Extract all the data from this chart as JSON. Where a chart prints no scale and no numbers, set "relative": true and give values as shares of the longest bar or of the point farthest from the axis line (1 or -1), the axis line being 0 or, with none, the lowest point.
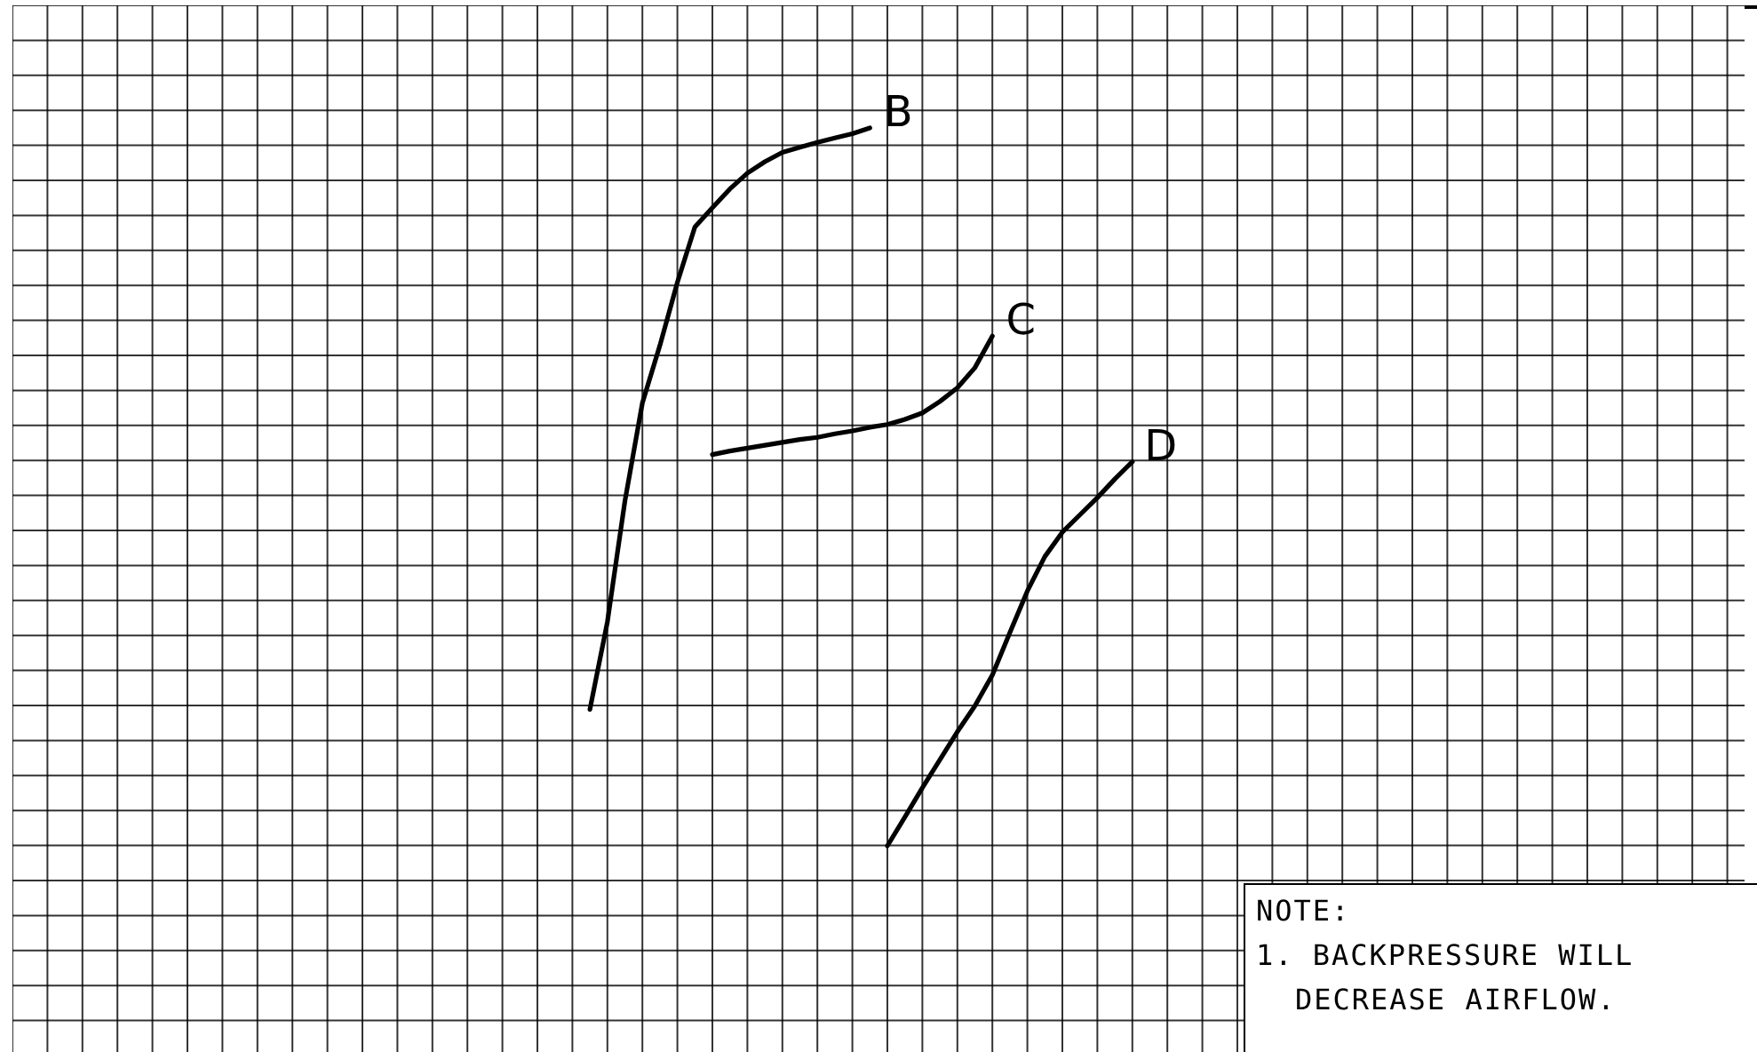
{
  "chart_data": {
    "type": "line",
    "relative": true,
    "grid": true,
    "marker": "none",
    "line_style": "solid",
    "categories": [
      null,
      null,
      null,
      null,
      null,
      null,
      null,
      null,
      null,
      null,
      null,
      null,
      null,
      null,
      null,
      null,
      null,
      null,
      null,
      null,
      null,
      null,
      null,
      null,
      null,
      null,
      null,
      null,
      null,
      null,
      null,
      null,
      null,
      null,
      null,
      null,
      null,
      null,
      null,
      null,
      null,
      null,
      null,
      null,
      null,
      null,
      null,
      null,
      null,
      null,
      null,
      null,
      null,
      null,
      null,
      null,
      null,
      null,
      null,
      null,
      null,
      null,
      null,
      null,
      null,
      null,
      null,
      null,
      null,
      null,
      null,
      null,
      null,
      null,
      null,
      null,
      null,
      null,
      null,
      null,
      null,
      null,
      null,
      null,
      null,
      null,
      null,
      null,
      null,
      null,
      null,
      null,
      null,
      null,
      null,
      null,
      null,
      null,
      null,
      null
    ],
    "annotations": [
      "NOTE:",
      "1. BACKPRESSURE WILL DECREASE AIRFLOW."
    ],
    "series": [
      {
        "name": "B",
        "color": "#000000",
        "values": [
          null,
          null,
          null,
          null,
          null,
          null,
          null,
          null,
          null,
          null,
          null,
          null,
          null,
          null,
          null,
          null,
          null,
          null,
          null,
          null,
          null,
          null,
          null,
          null,
          null,
          null,
          null,
          null,
          null,
          null,
          null,
          null,
          null,
          0.19,
          0.312,
          0.48,
          0.617,
          0.697,
          0.785,
          0.862,
          0.889,
          0.915,
          0.937,
          0.953,
          0.966,
          0.973,
          0.98,
          0.986,
          0.992,
          1,
          null,
          null,
          null,
          null,
          null,
          null,
          null,
          null,
          null,
          null,
          null,
          null,
          null,
          null,
          null,
          null,
          null,
          null,
          null,
          null,
          null,
          null,
          null,
          null,
          null,
          null,
          null,
          null,
          null,
          null,
          null,
          null,
          null,
          null,
          null,
          null,
          null,
          null,
          null,
          null,
          null,
          null,
          null,
          null,
          null,
          null,
          null,
          null,
          null,
          null
        ]
      },
      {
        "name": "C",
        "color": "#000000",
        "values": [
          null,
          null,
          null,
          null,
          null,
          null,
          null,
          null,
          null,
          null,
          null,
          null,
          null,
          null,
          null,
          null,
          null,
          null,
          null,
          null,
          null,
          null,
          null,
          null,
          null,
          null,
          null,
          null,
          null,
          null,
          null,
          null,
          null,
          null,
          null,
          null,
          null,
          null,
          null,
          null,
          0.545,
          0.55,
          0.554,
          0.558,
          0.562,
          0.566,
          0.569,
          0.574,
          0.578,
          0.583,
          0.587,
          0.594,
          0.603,
          0.619,
          0.638,
          0.666,
          0.71,
          null,
          null,
          null,
          null,
          null,
          null,
          null,
          null,
          null,
          null,
          null,
          null,
          null,
          null,
          null,
          null,
          null,
          null,
          null,
          null,
          null,
          null,
          null,
          null,
          null,
          null,
          null,
          null,
          null,
          null,
          null,
          null,
          null,
          null,
          null,
          null,
          null,
          null,
          null,
          null,
          null,
          null,
          null
        ]
      },
      {
        "name": "D",
        "color": "#000000",
        "values": [
          null,
          null,
          null,
          null,
          null,
          null,
          null,
          null,
          null,
          null,
          null,
          null,
          null,
          null,
          null,
          null,
          null,
          null,
          null,
          null,
          null,
          null,
          null,
          null,
          null,
          null,
          null,
          null,
          null,
          null,
          null,
          null,
          null,
          null,
          null,
          null,
          null,
          null,
          null,
          null,
          null,
          null,
          null,
          null,
          null,
          null,
          null,
          null,
          null,
          null,
          0,
          0.04,
          0.081,
          0.12,
          0.159,
          0.195,
          0.238,
          0.297,
          0.355,
          0.403,
          0.437,
          0.461,
          0.485,
          0.511,
          0.535,
          null,
          null,
          null,
          null,
          null,
          null,
          null,
          null,
          null,
          null,
          null,
          null,
          null,
          null,
          null,
          null,
          null,
          null,
          null,
          null,
          null,
          null,
          null,
          null,
          null,
          null,
          null,
          null,
          null,
          null,
          null,
          null,
          null,
          null,
          null
        ]
      }
    ]
  }
}
